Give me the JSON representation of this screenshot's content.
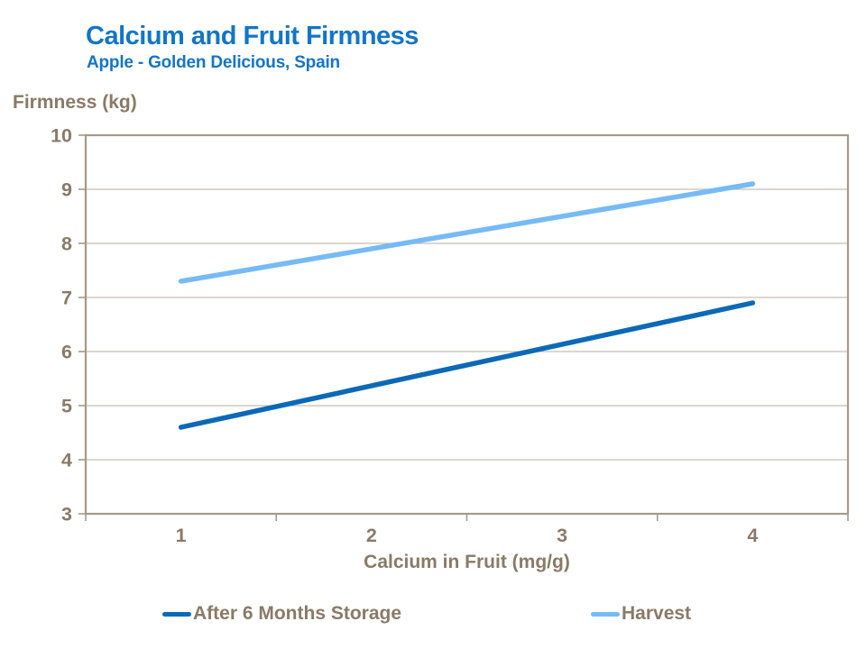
{
  "colors": {
    "title_blue": "#1375C6",
    "axis_text_brown": "#8A7A66",
    "frame": "#A69987",
    "gridline": "#C6BDB0",
    "background": "#FFFFFF",
    "series_storage": "#0B69B7",
    "series_harvest": "#76BAF6"
  },
  "chart_data": {
    "type": "line",
    "title": "Calcium and Fruit Firmness",
    "subtitle": "Apple - Golden Delicious, Spain",
    "ylabel": "Firmness (kg)",
    "xlabel": "Calcium in Fruit (mg/g)",
    "x_ticks": [
      "1",
      "2",
      "3",
      "4"
    ],
    "y_ticks": [
      10,
      9,
      8,
      7,
      6,
      5,
      4,
      3
    ],
    "ylim": [
      3,
      10
    ],
    "grid": "horizontal",
    "legend_position": "bottom",
    "series": [
      {
        "name": "After 6 Months Storage",
        "color": "#0B69B7",
        "points": [
          {
            "x": 1,
            "y": 4.6
          },
          {
            "x": 4,
            "y": 6.9
          }
        ]
      },
      {
        "name": "Harvest",
        "color": "#76BAF6",
        "points": [
          {
            "x": 1,
            "y": 7.3
          },
          {
            "x": 4,
            "y": 9.1
          }
        ]
      }
    ]
  }
}
